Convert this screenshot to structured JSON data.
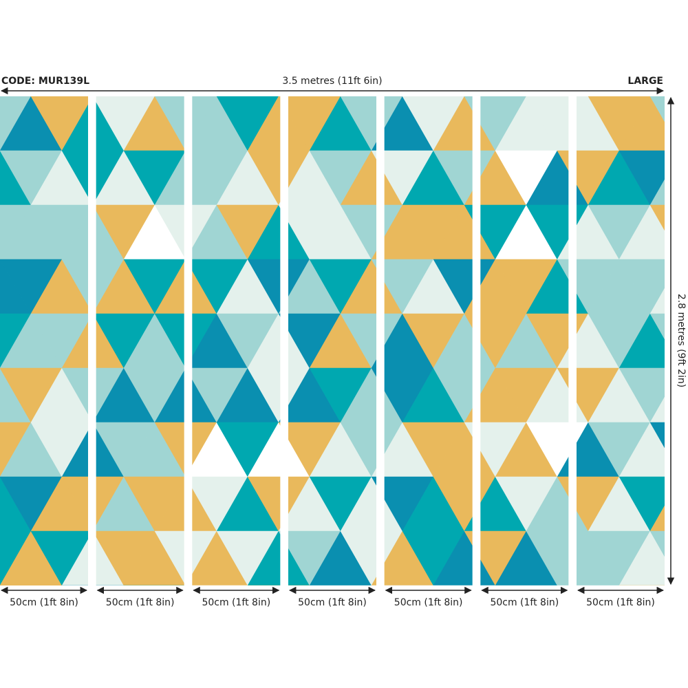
{
  "header": {
    "code": "CODE: MUR139L",
    "width": "3.5 metres (11ft 6in)",
    "size": "LARGE"
  },
  "height": "2.8 metres (9ft 2in)",
  "panels": [
    "50cm (1ft 8in)",
    "50cm (1ft 8in)",
    "50cm (1ft 8in)",
    "50cm (1ft 8in)",
    "50cm (1ft 8in)",
    "50cm (1ft 8in)",
    "50cm (1ft 8in)"
  ]
}
